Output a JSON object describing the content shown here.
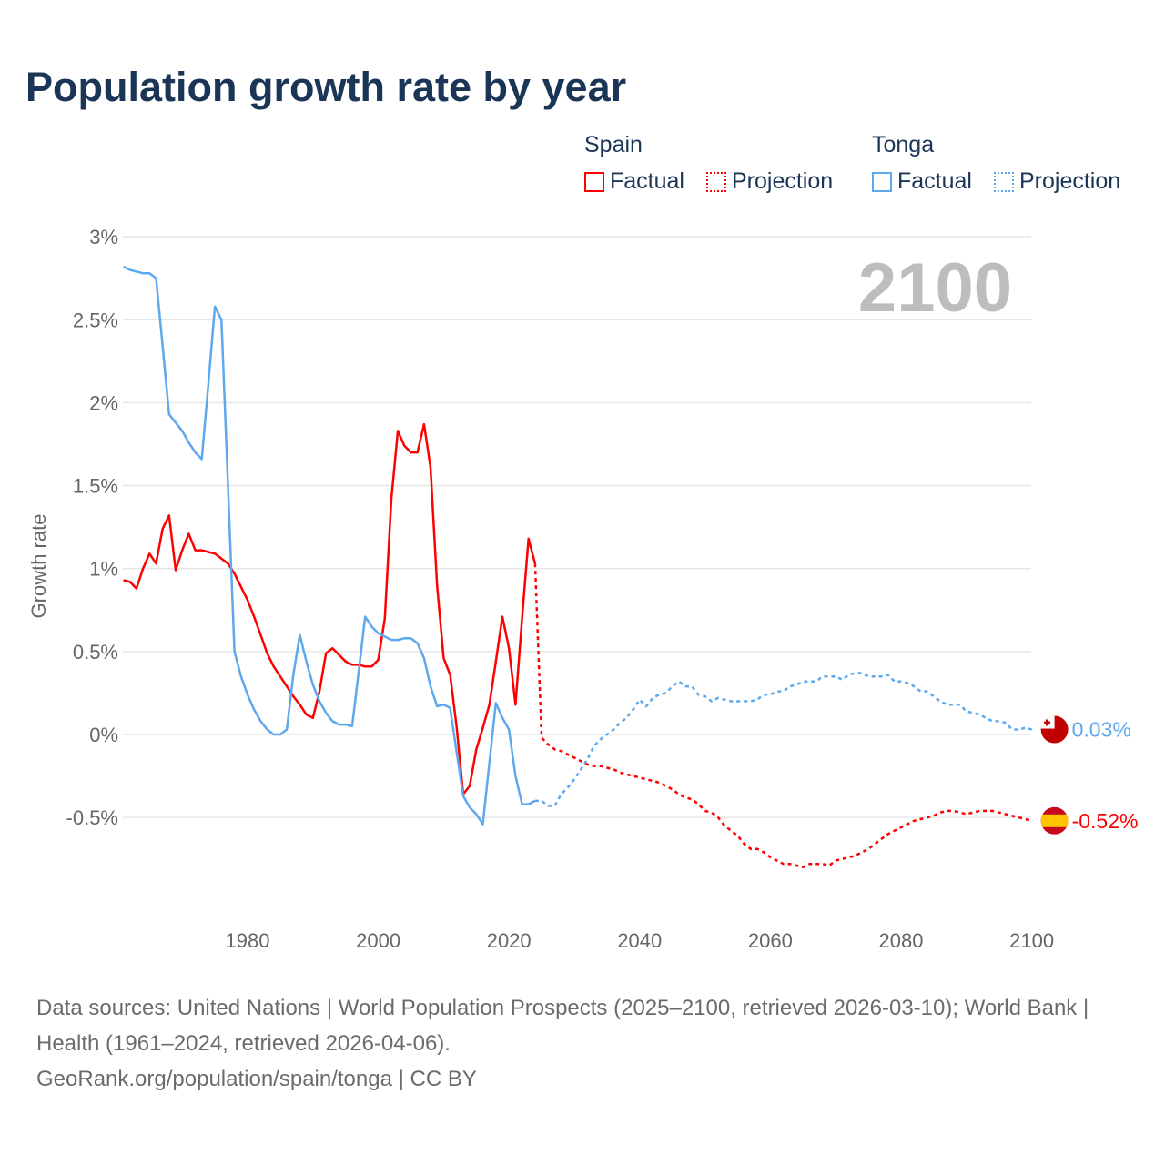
{
  "title": "Population growth rate by year",
  "legend": {
    "groups": [
      {
        "name": "Spain",
        "color": "#ff0000",
        "factual": "Factual",
        "projection": "Projection"
      },
      {
        "name": "Tonga",
        "color": "#5ea8ee",
        "factual": "Factual",
        "projection": "Projection"
      }
    ]
  },
  "year_label": "2100",
  "end_labels": {
    "spain": "-0.52%",
    "tonga": "0.03%"
  },
  "footer": {
    "sources": "Data sources: United Nations | World Population Prospects (2025–2100, retrieved 2026-03-10); World Bank | Health (1961–2024, retrieved 2026-04-06).",
    "credit": "GeoRank.org/population/spain/tonga | CC BY"
  },
  "chart_data": {
    "type": "line",
    "title": "Population growth rate by year",
    "ylabel": "Growth rate",
    "xlabel": "",
    "xlim": [
      1961,
      2100
    ],
    "ylim": [
      -1.0,
      3.0
    ],
    "x_ticks": [
      1980,
      2000,
      2020,
      2040,
      2060,
      2080,
      2100
    ],
    "y_ticks": [
      {
        "v": 3,
        "label": "3%"
      },
      {
        "v": 2.5,
        "label": "2.5%"
      },
      {
        "v": 2,
        "label": "2%"
      },
      {
        "v": 1.5,
        "label": "1.5%"
      },
      {
        "v": 1,
        "label": "1%"
      },
      {
        "v": 0.5,
        "label": "0.5%"
      },
      {
        "v": 0,
        "label": "0%"
      },
      {
        "v": -0.5,
        "label": "-0.5%"
      }
    ],
    "grid": true,
    "legend_position": "top-right",
    "series": [
      {
        "name": "Spain Factual",
        "country": "spain",
        "style": "solid",
        "color": "#ff0000",
        "start": 1961,
        "values": [
          0.93,
          0.92,
          0.88,
          1.0,
          1.09,
          1.03,
          1.24,
          1.32,
          0.99,
          1.11,
          1.21,
          1.11,
          1.11,
          1.1,
          1.09,
          1.06,
          1.03,
          0.97,
          0.89,
          0.81,
          0.71,
          0.6,
          0.49,
          0.41,
          0.35,
          0.29,
          0.23,
          0.18,
          0.12,
          0.1,
          0.26,
          0.49,
          0.52,
          0.48,
          0.44,
          0.42,
          0.42,
          0.41,
          0.41,
          0.45,
          0.7,
          1.42,
          1.83,
          1.74,
          1.7,
          1.7,
          1.87,
          1.61,
          0.9,
          0.46,
          0.36,
          0.04,
          -0.36,
          -0.31,
          -0.09,
          0.04,
          0.18,
          0.44,
          0.71,
          0.52,
          0.18,
          0.7,
          1.18,
          1.03
        ]
      },
      {
        "name": "Spain Projection",
        "country": "spain",
        "style": "dotted",
        "color": "#ff0000",
        "start": 2024,
        "values": [
          1.03,
          -0.02,
          -0.06,
          -0.09,
          -0.1,
          -0.12,
          -0.14,
          -0.16,
          -0.18,
          -0.19,
          -0.19,
          -0.2,
          -0.21,
          -0.23,
          -0.24,
          -0.25,
          -0.26,
          -0.27,
          -0.28,
          -0.29,
          -0.31,
          -0.33,
          -0.36,
          -0.38,
          -0.39,
          -0.42,
          -0.46,
          -0.47,
          -0.5,
          -0.55,
          -0.58,
          -0.61,
          -0.66,
          -0.69,
          -0.69,
          -0.71,
          -0.74,
          -0.76,
          -0.78,
          -0.78,
          -0.79,
          -0.8,
          -0.78,
          -0.78,
          -0.78,
          -0.79,
          -0.76,
          -0.75,
          -0.74,
          -0.73,
          -0.71,
          -0.69,
          -0.66,
          -0.63,
          -0.6,
          -0.58,
          -0.56,
          -0.54,
          -0.52,
          -0.51,
          -0.5,
          -0.49,
          -0.47,
          -0.46,
          -0.46,
          -0.47,
          -0.48,
          -0.47,
          -0.46,
          -0.46,
          -0.46,
          -0.47,
          -0.48,
          -0.49,
          -0.5,
          -0.51,
          -0.52
        ]
      },
      {
        "name": "Tonga Factual",
        "country": "tonga",
        "style": "solid",
        "color": "#5ea8ee",
        "start": 1961,
        "values": [
          2.82,
          2.8,
          2.79,
          2.78,
          2.78,
          2.75,
          2.34,
          1.93,
          1.88,
          1.83,
          1.76,
          1.7,
          1.66,
          2.11,
          2.58,
          2.5,
          1.5,
          0.5,
          0.35,
          0.24,
          0.15,
          0.08,
          0.03,
          0.0,
          0.0,
          0.03,
          0.36,
          0.6,
          0.44,
          0.3,
          0.2,
          0.13,
          0.08,
          0.06,
          0.06,
          0.05,
          0.38,
          0.71,
          0.65,
          0.61,
          0.59,
          0.57,
          0.57,
          0.58,
          0.58,
          0.55,
          0.46,
          0.29,
          0.17,
          0.18,
          0.16,
          -0.11,
          -0.37,
          -0.44,
          -0.48,
          -0.54,
          -0.17,
          0.19,
          0.1,
          0.03,
          -0.25,
          -0.42,
          -0.42,
          -0.4
        ]
      },
      {
        "name": "Tonga Projection",
        "country": "tonga",
        "style": "dotted",
        "color": "#5ea8ee",
        "start": 2024,
        "values": [
          -0.4,
          -0.4,
          -0.43,
          -0.43,
          -0.36,
          -0.32,
          -0.27,
          -0.21,
          -0.15,
          -0.07,
          -0.03,
          0.0,
          0.03,
          0.07,
          0.1,
          0.15,
          0.21,
          0.17,
          0.22,
          0.24,
          0.25,
          0.29,
          0.32,
          0.29,
          0.29,
          0.24,
          0.23,
          0.2,
          0.22,
          0.21,
          0.2,
          0.2,
          0.2,
          0.2,
          0.21,
          0.24,
          0.24,
          0.26,
          0.26,
          0.29,
          0.3,
          0.32,
          0.32,
          0.32,
          0.35,
          0.35,
          0.35,
          0.33,
          0.36,
          0.37,
          0.37,
          0.35,
          0.35,
          0.35,
          0.36,
          0.32,
          0.32,
          0.31,
          0.29,
          0.26,
          0.26,
          0.23,
          0.2,
          0.18,
          0.18,
          0.18,
          0.14,
          0.13,
          0.12,
          0.1,
          0.08,
          0.08,
          0.07,
          0.03,
          0.03,
          0.04,
          0.03
        ]
      }
    ]
  }
}
